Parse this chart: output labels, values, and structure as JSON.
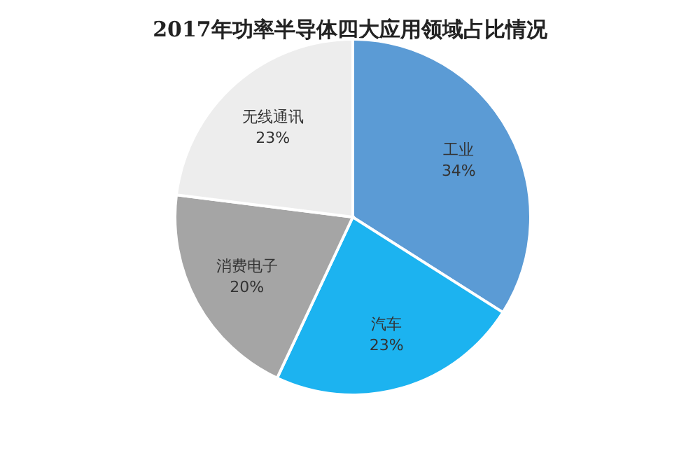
{
  "chart_data": {
    "type": "pie",
    "title": "2017年功率半导体四大应用领域占比情况",
    "categories": [
      "工业",
      "汽车",
      "消费电子",
      "无线通讯"
    ],
    "values": [
      34,
      23,
      20,
      23
    ],
    "value_labels": [
      "34%",
      "23%",
      "20%",
      "23%"
    ],
    "colors": [
      "#5b9bd5",
      "#1cb3f0",
      "#a5a5a5",
      "#ededed"
    ],
    "legend": false
  }
}
